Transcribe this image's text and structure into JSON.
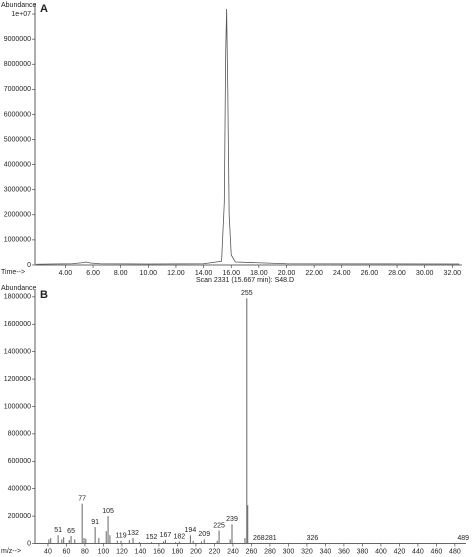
{
  "chart_data": [
    {
      "type": "line",
      "panel": "A",
      "y_label": "Abundance",
      "x_label": "Time-->",
      "color": "#555555",
      "x": [
        1.9,
        3.0,
        4.5,
        5.2,
        5.5,
        5.8,
        6.5,
        10.0,
        14.0,
        15.3,
        15.5,
        15.6,
        15.667,
        15.75,
        15.85,
        16.0,
        16.3,
        20.0,
        32.5
      ],
      "values": [
        30000,
        40000,
        50000,
        90000,
        120000,
        80000,
        50000,
        40000,
        50000,
        150000,
        2500000,
        8500000,
        10200000,
        7000000,
        2000000,
        400000,
        120000,
        50000,
        40000
      ],
      "xlim": [
        1.8,
        32.7
      ],
      "xticks": [
        {
          "value": 4,
          "label": "4.00"
        },
        {
          "value": 6,
          "label": "6.00"
        },
        {
          "value": 8,
          "label": "8.00"
        },
        {
          "value": 10,
          "label": "10.00"
        },
        {
          "value": 12,
          "label": "12.00"
        },
        {
          "value": 14,
          "label": "14.00"
        },
        {
          "value": 16,
          "label": "16.00"
        },
        {
          "value": 18,
          "label": "18.00"
        },
        {
          "value": 20,
          "label": "20.00"
        },
        {
          "value": 22,
          "label": "22.00"
        },
        {
          "value": 24,
          "label": "24.00"
        },
        {
          "value": 26,
          "label": "26.00"
        },
        {
          "value": 28,
          "label": "28.00"
        },
        {
          "value": 30,
          "label": "30.00"
        },
        {
          "value": 32,
          "label": "32.00"
        }
      ],
      "ylim": [
        0,
        10400000
      ],
      "yticks": [
        0,
        1000000,
        2000000,
        3000000,
        4000000,
        5000000,
        6000000,
        7000000,
        8000000,
        9000000,
        {
          "value": 10000000,
          "label": "1e+07"
        }
      ]
    },
    {
      "type": "bar",
      "panel": "B",
      "title": "Scan 2331 (15.667 min): S48.D",
      "y_label": "Abundance",
      "x_label": "m/z-->",
      "color": "#666666",
      "peaks": {
        "x": [
          51,
          65,
          77,
          91,
          105,
          119,
          132,
          152,
          167,
          182,
          194,
          209,
          225,
          239,
          255,
          268,
          281,
          326,
          489
        ],
        "values": [
          60000,
          55000,
          290000,
          120000,
          200000,
          20000,
          40000,
          10000,
          25000,
          15000,
          60000,
          30000,
          95000,
          140000,
          1790000,
          4000,
          4000,
          3000,
          3000
        ]
      },
      "minor_peaks": {
        "x": [
          41,
          43,
          55,
          57,
          63,
          69,
          79,
          81,
          95,
          103,
          107,
          115,
          128,
          139,
          165,
          178,
          197,
          206,
          223,
          237,
          253,
          256
        ],
        "values": [
          30000,
          40000,
          30000,
          45000,
          25000,
          30000,
          40000,
          35000,
          40000,
          90000,
          60000,
          20000,
          25000,
          10000,
          15000,
          10000,
          20000,
          15000,
          20000,
          30000,
          40000,
          280000
        ]
      },
      "xlim": [
        26,
        492
      ],
      "xticks": [
        40,
        60,
        80,
        100,
        120,
        140,
        160,
        180,
        200,
        220,
        240,
        260,
        280,
        300,
        320,
        340,
        360,
        380,
        400,
        420,
        440,
        460,
        480
      ],
      "ylim": [
        0,
        1850000
      ],
      "yticks": [
        0,
        200000,
        400000,
        600000,
        800000,
        1000000,
        1200000,
        1400000,
        1600000,
        1800000
      ]
    }
  ]
}
